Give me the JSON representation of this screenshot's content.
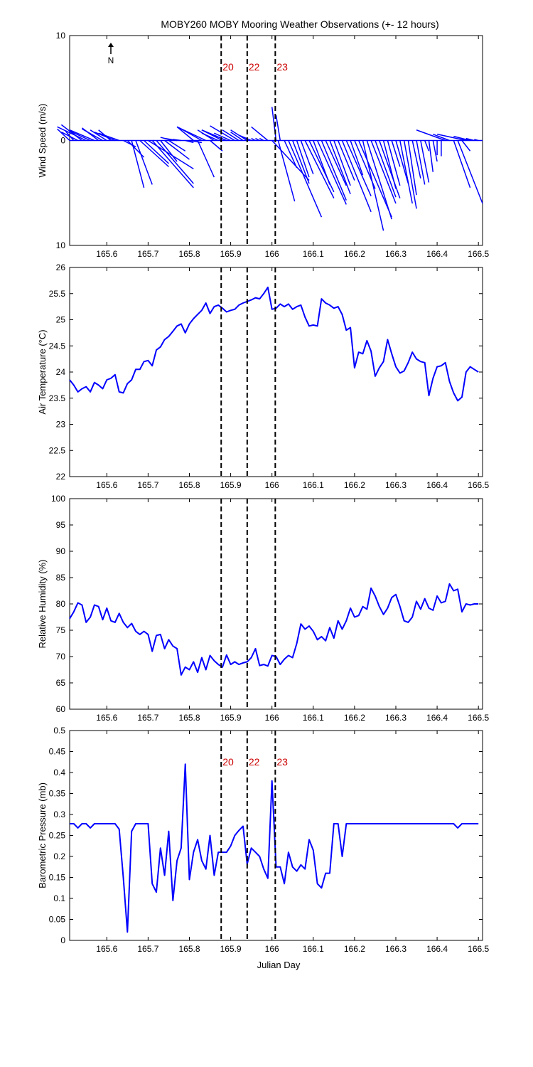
{
  "title": "MOBY260 MOBY Mooring Weather Observations (+- 12 hours)",
  "xlabel": "Julian Day",
  "north_label": "N",
  "colors": {
    "series": "#0000ff",
    "marker": "#cc0000",
    "axes": "#000000"
  },
  "xticks": [
    "165.6",
    "165.7",
    "165.8",
    "165.9",
    "166",
    "166.1",
    "166.2",
    "166.3",
    "166.4",
    "166.5"
  ],
  "chart_data": [
    {
      "type": "quiver",
      "id": "wind",
      "ylabel": "Wind Speed (m/s)",
      "xlim": [
        165.51,
        166.51
      ],
      "ylim": [
        -10,
        10
      ],
      "yticks": [
        "10",
        "0",
        "10"
      ],
      "markers": [
        {
          "x": 165.877,
          "label": "20"
        },
        {
          "x": 165.94,
          "label": "22"
        },
        {
          "x": 166.008,
          "label": "23"
        }
      ],
      "vectors": [
        [
          165.51,
          1.1,
          -0.3
        ],
        [
          165.52,
          0.9,
          -0.2
        ],
        [
          165.53,
          0.8,
          -0.4
        ],
        [
          165.54,
          1.5,
          -0.5
        ],
        [
          165.55,
          1.3,
          -0.7
        ],
        [
          165.56,
          0.9,
          -0.5
        ],
        [
          165.57,
          1.0,
          -0.6
        ],
        [
          165.58,
          1.2,
          -0.4
        ],
        [
          165.59,
          1.1,
          -0.5
        ],
        [
          165.6,
          1.0,
          -0.4
        ],
        [
          165.61,
          1.0,
          -0.3
        ],
        [
          165.62,
          0.8,
          -0.5
        ],
        [
          165.63,
          0.7,
          -0.5
        ],
        [
          165.64,
          -0.6,
          0.3
        ],
        [
          165.65,
          -1.6,
          0.4
        ],
        [
          165.66,
          -4.5,
          0.3
        ],
        [
          165.67,
          -4.2,
          0.4
        ],
        [
          165.68,
          -2.5,
          0.7
        ],
        [
          165.69,
          -2.2,
          0.6
        ],
        [
          165.7,
          -2.7,
          1.1
        ],
        [
          165.71,
          -4.5,
          1.0
        ],
        [
          165.72,
          -4.1,
          0.9
        ],
        [
          165.73,
          -2.0,
          0.4
        ],
        [
          165.74,
          -1.8,
          0.6
        ],
        [
          165.75,
          -1.0,
          0.4
        ],
        [
          165.76,
          0.3,
          -0.3
        ],
        [
          165.77,
          0.2,
          -0.3
        ],
        [
          165.78,
          0.1,
          -0.2
        ],
        [
          165.79,
          -0.2,
          0.2
        ],
        [
          165.8,
          -0.2,
          0.3
        ],
        [
          165.81,
          1.3,
          -0.4
        ],
        [
          165.82,
          -3.5,
          0.4
        ],
        [
          165.83,
          1.1,
          -0.5
        ],
        [
          165.84,
          1.3,
          -0.7
        ],
        [
          165.85,
          -1.0,
          0.3
        ],
        [
          165.86,
          1.0,
          -0.4
        ],
        [
          165.87,
          0.7,
          -0.4
        ],
        [
          165.88,
          1.0,
          -0.5
        ],
        [
          165.89,
          1.0,
          -0.6
        ],
        [
          165.9,
          0.7,
          -0.4
        ],
        [
          165.91,
          1.4,
          -0.6
        ],
        [
          165.92,
          1.0,
          -0.4
        ],
        [
          165.93,
          0.8,
          -0.3
        ],
        [
          165.94,
          1.0,
          -0.4
        ],
        [
          165.95,
          0.5,
          -0.3
        ],
        [
          165.96,
          0.2,
          -0.1
        ],
        [
          165.97,
          0.2,
          -0.1
        ],
        [
          165.98,
          0.2,
          -0.1
        ],
        [
          165.99,
          1.3,
          -0.4
        ],
        [
          166.0,
          -3.8,
          0.9
        ],
        [
          166.01,
          3.2,
          -0.1
        ],
        [
          166.015,
          -5.8,
          0.4
        ],
        [
          166.02,
          2.4,
          -0.1
        ],
        [
          166.03,
          -2.6,
          0.3
        ],
        [
          166.04,
          -7.3,
          0.8
        ],
        [
          166.05,
          -4.1,
          0.4
        ],
        [
          166.06,
          -3.5,
          0.3
        ],
        [
          166.07,
          -3.2,
          0.3
        ],
        [
          166.08,
          -5.5,
          0.7
        ],
        [
          166.09,
          -4.9,
          0.6
        ],
        [
          166.1,
          -4.2,
          0.4
        ],
        [
          166.11,
          -6.1,
          0.7
        ],
        [
          166.12,
          -5.7,
          0.6
        ],
        [
          166.13,
          -4.3,
          0.5
        ],
        [
          166.14,
          -5.1,
          0.5
        ],
        [
          166.15,
          -4.3,
          0.4
        ],
        [
          166.16,
          -3.8,
          0.4
        ],
        [
          166.17,
          -6.8,
          0.7
        ],
        [
          166.18,
          -5.3,
          0.6
        ],
        [
          166.19,
          -3.3,
          0.3
        ],
        [
          166.2,
          -4.6,
          0.5
        ],
        [
          166.21,
          -7.3,
          0.8
        ],
        [
          166.22,
          -8.6,
          0.5
        ],
        [
          166.23,
          -7.5,
          0.6
        ],
        [
          166.24,
          -6.0,
          0.6
        ],
        [
          166.25,
          -5.4,
          0.5
        ],
        [
          166.26,
          -5.5,
          0.5
        ],
        [
          166.27,
          -4.6,
          0.3
        ],
        [
          166.28,
          -4.3,
          0.3
        ],
        [
          166.29,
          -2.5,
          0.2
        ],
        [
          166.3,
          -4.1,
          0.3
        ],
        [
          166.31,
          -6.0,
          0.3
        ],
        [
          166.32,
          -6.5,
          0.3
        ],
        [
          166.33,
          -5.2,
          0.2
        ],
        [
          166.34,
          -3.6,
          0.2
        ],
        [
          166.35,
          -4.2,
          0.2
        ],
        [
          166.36,
          -4.0,
          0.2
        ],
        [
          166.37,
          -1.0,
          0.1
        ],
        [
          166.38,
          -3.0,
          0.1
        ],
        [
          166.39,
          -2.0,
          0.1
        ],
        [
          166.4,
          -1.4,
          0.0
        ],
        [
          166.41,
          -1.5,
          0.0
        ],
        [
          166.42,
          1.0,
          -0.7
        ],
        [
          166.43,
          0.6,
          -0.4
        ],
        [
          166.44,
          -4.5,
          0.4
        ],
        [
          166.45,
          -6.0,
          0.6
        ],
        [
          166.46,
          -1.0,
          0.2
        ],
        [
          166.47,
          0.6,
          -0.7
        ],
        [
          166.48,
          0.4,
          -0.4
        ],
        [
          166.49,
          0.2,
          -0.2
        ],
        [
          166.5,
          0.1,
          -0.1
        ]
      ]
    },
    {
      "type": "line",
      "id": "airtemp",
      "ylabel": "Air Temperature (°C)",
      "xlim": [
        165.51,
        166.51
      ],
      "ylim": [
        22,
        26
      ],
      "yticks": [
        "22",
        "22.5",
        "23",
        "23.5",
        "24",
        "24.5",
        "25",
        "25.5",
        "26"
      ],
      "markers": [
        {
          "x": 165.877,
          "label": ""
        },
        {
          "x": 165.94,
          "label": ""
        },
        {
          "x": 166.008,
          "label": ""
        }
      ],
      "x": [
        165.51,
        165.52,
        165.53,
        165.54,
        165.55,
        165.56,
        165.57,
        165.58,
        165.59,
        165.6,
        165.61,
        165.62,
        165.63,
        165.64,
        165.65,
        165.66,
        165.67,
        165.68,
        165.69,
        165.7,
        165.71,
        165.72,
        165.73,
        165.74,
        165.75,
        165.76,
        165.77,
        165.78,
        165.79,
        165.8,
        165.81,
        165.82,
        165.83,
        165.84,
        165.85,
        165.86,
        165.87,
        165.88,
        165.89,
        165.9,
        165.91,
        165.92,
        165.93,
        165.94,
        165.95,
        165.96,
        165.97,
        165.98,
        165.99,
        166.0,
        166.01,
        166.02,
        166.03,
        166.04,
        166.05,
        166.06,
        166.07,
        166.08,
        166.09,
        166.1,
        166.11,
        166.12,
        166.13,
        166.14,
        166.15,
        166.16,
        166.17,
        166.18,
        166.19,
        166.2,
        166.21,
        166.22,
        166.23,
        166.24,
        166.25,
        166.26,
        166.27,
        166.28,
        166.29,
        166.3,
        166.31,
        166.32,
        166.33,
        166.34,
        166.35,
        166.36,
        166.37,
        166.38,
        166.39,
        166.4,
        166.41,
        166.42,
        166.43,
        166.44,
        166.45,
        166.46,
        166.47,
        166.48,
        166.49,
        166.5
      ],
      "values": [
        23.85,
        23.75,
        23.62,
        23.68,
        23.72,
        23.62,
        23.8,
        23.75,
        23.68,
        23.85,
        23.88,
        23.95,
        23.62,
        23.6,
        23.78,
        23.85,
        24.05,
        24.05,
        24.2,
        24.22,
        24.12,
        24.42,
        24.48,
        24.62,
        24.68,
        24.78,
        24.88,
        24.92,
        24.75,
        24.92,
        25.02,
        25.1,
        25.18,
        25.32,
        25.12,
        25.25,
        25.28,
        25.22,
        25.15,
        25.18,
        25.2,
        25.28,
        25.32,
        25.35,
        25.38,
        25.42,
        25.4,
        25.5,
        25.62,
        25.2,
        25.22,
        25.3,
        25.25,
        25.3,
        25.2,
        25.25,
        25.28,
        25.05,
        24.88,
        24.9,
        24.88,
        25.4,
        25.32,
        25.28,
        25.22,
        25.25,
        25.1,
        24.8,
        24.85,
        24.08,
        24.38,
        24.35,
        24.6,
        24.4,
        23.92,
        24.08,
        24.2,
        24.62,
        24.35,
        24.1,
        23.98,
        24.02,
        24.18,
        24.38,
        24.25,
        24.2,
        24.18,
        23.55,
        23.88,
        24.1,
        24.12,
        24.18,
        23.82,
        23.6,
        23.45,
        23.52,
        24.0,
        24.1,
        24.05,
        24.0
      ]
    },
    {
      "type": "line",
      "id": "humidity",
      "ylabel": "Relative Humidity (%)",
      "xlim": [
        165.51,
        166.51
      ],
      "ylim": [
        60,
        100
      ],
      "yticks": [
        "60",
        "65",
        "70",
        "75",
        "80",
        "85",
        "90",
        "95",
        "100"
      ],
      "markers": [
        {
          "x": 165.877,
          "label": ""
        },
        {
          "x": 165.94,
          "label": ""
        },
        {
          "x": 166.008,
          "label": ""
        }
      ],
      "x": [
        165.51,
        165.52,
        165.53,
        165.54,
        165.55,
        165.56,
        165.57,
        165.58,
        165.59,
        165.6,
        165.61,
        165.62,
        165.63,
        165.64,
        165.65,
        165.66,
        165.67,
        165.68,
        165.69,
        165.7,
        165.71,
        165.72,
        165.73,
        165.74,
        165.75,
        165.76,
        165.77,
        165.78,
        165.79,
        165.8,
        165.81,
        165.82,
        165.83,
        165.84,
        165.85,
        165.86,
        165.87,
        165.88,
        165.89,
        165.9,
        165.91,
        165.92,
        165.93,
        165.94,
        165.95,
        165.96,
        165.97,
        165.98,
        165.99,
        166.0,
        166.01,
        166.02,
        166.03,
        166.04,
        166.05,
        166.06,
        166.07,
        166.08,
        166.09,
        166.1,
        166.11,
        166.12,
        166.13,
        166.14,
        166.15,
        166.16,
        166.17,
        166.18,
        166.19,
        166.2,
        166.21,
        166.22,
        166.23,
        166.24,
        166.25,
        166.26,
        166.27,
        166.28,
        166.29,
        166.3,
        166.31,
        166.32,
        166.33,
        166.34,
        166.35,
        166.36,
        166.37,
        166.38,
        166.39,
        166.4,
        166.41,
        166.42,
        166.43,
        166.44,
        166.45,
        166.46,
        166.47,
        166.48,
        166.49,
        166.5
      ],
      "values": [
        77.2,
        78.5,
        80.2,
        79.8,
        76.5,
        77.5,
        79.8,
        79.5,
        77.0,
        79.2,
        76.8,
        76.5,
        78.2,
        76.5,
        75.5,
        76.3,
        74.8,
        74.2,
        74.8,
        74.2,
        71.0,
        74.0,
        74.2,
        71.5,
        73.2,
        72.0,
        71.5,
        66.5,
        68.0,
        67.5,
        69.0,
        67.0,
        69.8,
        67.5,
        70.2,
        69.2,
        68.5,
        68.0,
        70.3,
        68.5,
        69.0,
        68.5,
        68.8,
        69.0,
        69.8,
        71.5,
        68.3,
        68.5,
        68.2,
        70.2,
        70.0,
        68.5,
        69.5,
        70.2,
        69.8,
        72.5,
        76.2,
        75.2,
        75.8,
        74.8,
        73.2,
        73.8,
        73.0,
        75.5,
        73.5,
        76.8,
        75.2,
        76.8,
        79.2,
        77.5,
        77.8,
        79.5,
        79.0,
        83.0,
        81.5,
        79.5,
        78.0,
        79.2,
        81.2,
        81.8,
        79.5,
        76.8,
        76.5,
        77.5,
        80.5,
        79.0,
        81.0,
        79.2,
        78.8,
        81.5,
        80.2,
        80.5,
        83.8,
        82.5,
        82.8,
        78.5,
        80.0,
        79.8,
        80.0,
        80.0
      ]
    },
    {
      "type": "line",
      "id": "pressure",
      "ylabel": "Barometric Pressure (mb)",
      "xlim": [
        165.51,
        166.51
      ],
      "ylim": [
        0,
        0.5
      ],
      "yticks": [
        "0",
        "0.05",
        "0.1",
        "0.15",
        "0.2",
        "0.25",
        "0.3",
        "0.35",
        "0.4",
        "0.45",
        "0.5"
      ],
      "markers": [
        {
          "x": 165.877,
          "label": "20"
        },
        {
          "x": 165.94,
          "label": "22"
        },
        {
          "x": 166.008,
          "label": "23"
        }
      ],
      "x": [
        165.51,
        165.52,
        165.53,
        165.54,
        165.55,
        165.56,
        165.57,
        165.58,
        165.59,
        165.6,
        165.61,
        165.62,
        165.63,
        165.64,
        165.65,
        165.66,
        165.67,
        165.68,
        165.69,
        165.7,
        165.71,
        165.72,
        165.73,
        165.74,
        165.75,
        165.76,
        165.77,
        165.78,
        165.79,
        165.8,
        165.81,
        165.82,
        165.83,
        165.84,
        165.85,
        165.86,
        165.87,
        165.88,
        165.89,
        165.9,
        165.91,
        165.92,
        165.93,
        165.94,
        165.95,
        165.96,
        165.97,
        165.98,
        165.99,
        166.0,
        166.01,
        166.02,
        166.03,
        166.04,
        166.05,
        166.06,
        166.07,
        166.08,
        166.09,
        166.1,
        166.11,
        166.12,
        166.13,
        166.14,
        166.15,
        166.16,
        166.17,
        166.18,
        166.19,
        166.2,
        166.21,
        166.22,
        166.23,
        166.24,
        166.25,
        166.26,
        166.27,
        166.28,
        166.29,
        166.3,
        166.31,
        166.32,
        166.33,
        166.34,
        166.35,
        166.36,
        166.37,
        166.38,
        166.39,
        166.4,
        166.41,
        166.42,
        166.43,
        166.44,
        166.45,
        166.46,
        166.47,
        166.48,
        166.49,
        166.5
      ],
      "values": [
        0.278,
        0.278,
        0.268,
        0.278,
        0.278,
        0.268,
        0.278,
        0.278,
        0.278,
        0.278,
        0.278,
        0.278,
        0.265,
        0.15,
        0.02,
        0.26,
        0.278,
        0.278,
        0.278,
        0.278,
        0.135,
        0.115,
        0.22,
        0.155,
        0.26,
        0.095,
        0.19,
        0.22,
        0.42,
        0.145,
        0.21,
        0.24,
        0.19,
        0.17,
        0.25,
        0.155,
        0.21,
        0.21,
        0.21,
        0.225,
        0.25,
        0.262,
        0.272,
        0.182,
        0.22,
        0.21,
        0.2,
        0.17,
        0.148,
        0.38,
        0.175,
        0.175,
        0.135,
        0.21,
        0.175,
        0.165,
        0.18,
        0.17,
        0.24,
        0.215,
        0.135,
        0.125,
        0.16,
        0.16,
        0.278,
        0.278,
        0.2,
        0.278,
        0.278,
        0.278,
        0.278,
        0.278,
        0.278,
        0.278,
        0.278,
        0.278,
        0.278,
        0.278,
        0.278,
        0.278,
        0.278,
        0.278,
        0.278,
        0.278,
        0.278,
        0.278,
        0.278,
        0.278,
        0.278,
        0.278,
        0.278,
        0.278,
        0.278,
        0.278,
        0.268,
        0.278,
        0.278,
        0.278,
        0.278,
        0.278
      ]
    }
  ]
}
